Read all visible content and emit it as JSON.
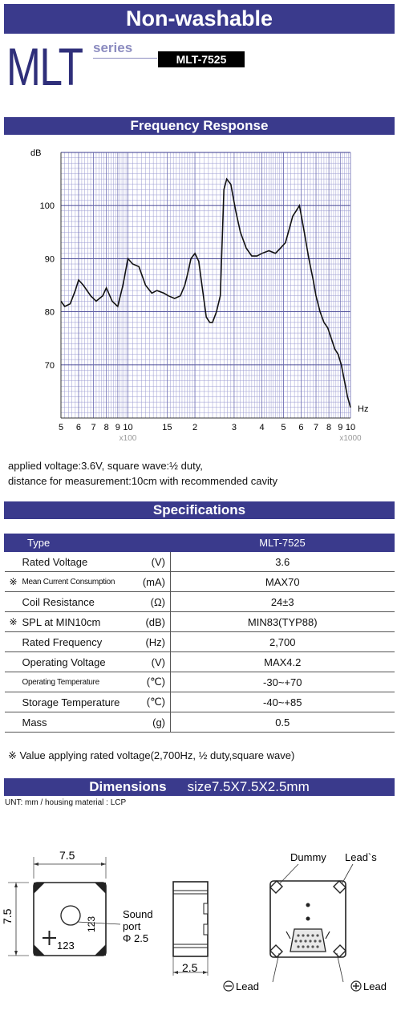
{
  "header": {
    "banner": "Non-washable",
    "brand": "MLT",
    "series_label": "series",
    "model": "MLT-7525"
  },
  "frequency_response": {
    "section_title": "Frequency Response",
    "notes": [
      "applied voltage:3.6V, square wave:½ duty,",
      "distance for measurement:10cm with recommended cavity"
    ]
  },
  "chart_data": {
    "type": "line",
    "title": "",
    "ylabel": "dB",
    "xlabel_unit": "Hz",
    "x_scale": "log",
    "xlim": [
      500,
      10000
    ],
    "ylim": [
      60,
      110
    ],
    "y_ticks": [
      70,
      80,
      90,
      100
    ],
    "x_tick_labels": [
      "5",
      "6",
      "7",
      "8",
      "9",
      "10",
      "15",
      "2",
      "3",
      "4",
      "5",
      "6",
      "7",
      "8",
      "9",
      "10"
    ],
    "x_tick_values": [
      500,
      600,
      700,
      800,
      900,
      1000,
      1500,
      2000,
      3000,
      4000,
      5000,
      6000,
      7000,
      8000,
      9000,
      10000
    ],
    "x_multiplier_labels": [
      "x100",
      "x1000"
    ],
    "grid": true,
    "series": [
      {
        "x": [
          500,
          520,
          550,
          580,
          600,
          630,
          680,
          720,
          770,
          800,
          850,
          900,
          950,
          1000,
          1050,
          1120,
          1200,
          1280,
          1350,
          1450,
          1520,
          1620,
          1720,
          1800,
          1850,
          1920,
          2000,
          2080,
          2150,
          2250,
          2330,
          2400,
          2500,
          2600,
          2700,
          2780,
          2900,
          3050,
          3200,
          3400,
          3600,
          3800,
          4000,
          4300,
          4600,
          4850,
          5100,
          5300,
          5500,
          5700,
          5900,
          6200,
          6500,
          6800,
          7000,
          7300,
          7600,
          7900,
          8200,
          8500,
          8800,
          9100,
          9400,
          9700,
          10000
        ],
        "y": [
          82,
          81,
          81.5,
          84,
          86,
          85,
          83,
          82,
          83,
          84.5,
          82,
          81,
          85,
          90,
          89,
          88.5,
          85,
          83.5,
          84,
          83.5,
          83,
          82.5,
          83,
          85,
          87,
          90,
          91,
          89.5,
          85,
          79,
          78,
          78,
          80,
          83,
          103,
          105,
          104,
          99,
          95,
          92,
          90.5,
          90.5,
          91,
          91.5,
          91,
          92,
          93,
          95.5,
          98,
          99,
          100,
          95,
          90,
          86,
          83,
          80,
          78,
          77,
          75,
          73,
          72,
          70,
          67,
          64,
          62
        ]
      }
    ]
  },
  "specifications": {
    "section_title": "Specifications",
    "columns": [
      "Type",
      "MLT-7525"
    ],
    "rows": [
      {
        "mark": "",
        "name": "Rated Voltage",
        "unit": "(V)",
        "value": "3.6"
      },
      {
        "mark": "※",
        "name": "Mean Current Consumption",
        "unit": "(mA)",
        "value": "MAX70"
      },
      {
        "mark": "",
        "name": "Coil Resistance",
        "unit": "(Ω)",
        "value": "24±3"
      },
      {
        "mark": "※",
        "name": "SPL at MIN10cm",
        "unit": "(dB)",
        "value": "MIN83(TYP88)"
      },
      {
        "mark": "",
        "name": "Rated Frequency",
        "unit": "(Hz)",
        "value": "2,700"
      },
      {
        "mark": "",
        "name": "Operating Voltage",
        "unit": "(V)",
        "value": "MAX4.2"
      },
      {
        "mark": "",
        "name": "Operating Temperature",
        "unit": "(℃)",
        "value": "-30~+70"
      },
      {
        "mark": "",
        "name": "Storage Temperature",
        "unit": "(℃)",
        "value": "-40~+85"
      },
      {
        "mark": "",
        "name": "Mass",
        "unit": "(g)",
        "value": "0.5"
      }
    ],
    "footnote": "※ Value applying rated voltage(2,700Hz, ½ duty,square wave)"
  },
  "dimensions": {
    "section_title": "Dimensions",
    "size": "size7.5X7.5X2.5mm",
    "units_note": "UNT: mm  /  housing material : LCP",
    "labels": {
      "width": "7.5",
      "height": "7.5",
      "depth": "2.5",
      "sound_port": "Sound",
      "port": "port",
      "port_dia": "Φ 2.5",
      "marking": "123",
      "marking_rot": "123",
      "dummy_leads": "Dummy",
      "leads_word": "Lead`s",
      "minus_lead": "Lead",
      "plus_lead": "Lead"
    }
  }
}
